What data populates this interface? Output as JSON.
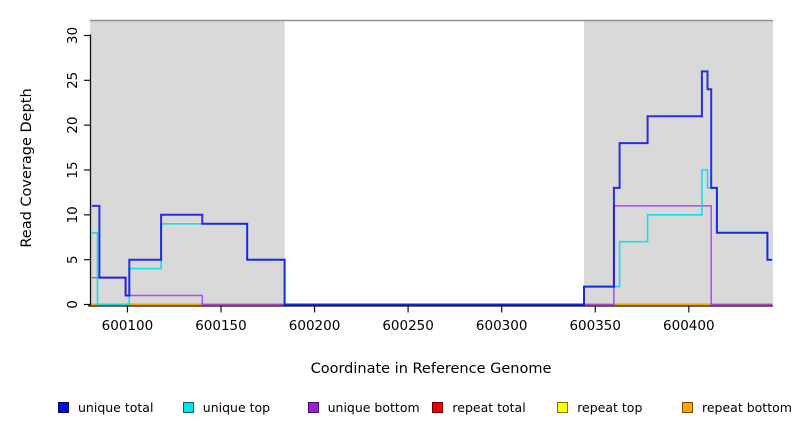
{
  "chart_data": {
    "type": "line",
    "step_mode": "after",
    "title": "",
    "xlabel": "Coordinate in Reference Genome",
    "ylabel": "Read Coverage Depth",
    "x_domain": [
      600080,
      600445
    ],
    "y_domain": [
      0,
      31.8
    ],
    "x_ticks": [
      600100,
      600150,
      600200,
      600250,
      600300,
      600350,
      600400
    ],
    "y_ticks": [
      0,
      5,
      10,
      15,
      20,
      25,
      30
    ],
    "grid": false,
    "legend_position": "bottom",
    "shaded_regions": [
      {
        "from": 600080,
        "to": 600184
      },
      {
        "from": 600344,
        "to": 600445
      }
    ],
    "colors": {
      "shade": "#d9d9d9",
      "top_border": "#8f8f8f",
      "axis": "#111111"
    },
    "data_end_x": 600444.5,
    "series": [
      {
        "name": "repeat top",
        "color": "#ffee00",
        "width": 1.5,
        "opacity": 1.0,
        "points": [
          [
            600081,
            0
          ]
        ]
      },
      {
        "name": "repeat total",
        "color": "#ee1122",
        "width": 1.5,
        "opacity": 0.9,
        "points": [
          [
            600081,
            0
          ]
        ]
      },
      {
        "name": "repeat bottom",
        "color": "#ffa200",
        "width": 1.6,
        "opacity": 1.0,
        "points": [
          [
            600081,
            0
          ]
        ]
      },
      {
        "name": "unique bottom",
        "color": "#a335ea",
        "width": 1.5,
        "opacity": 0.85,
        "points": [
          [
            600081,
            3
          ],
          [
            600099,
            1
          ],
          [
            600140,
            0
          ],
          [
            600360,
            11
          ],
          [
            600412,
            0
          ]
        ]
      },
      {
        "name": "unique top",
        "color": "#00dde8",
        "width": 1.6,
        "opacity": 0.9,
        "points": [
          [
            600081,
            8
          ],
          [
            600084,
            0
          ],
          [
            600101,
            4
          ],
          [
            600118,
            9
          ],
          [
            600164,
            5
          ],
          [
            600184,
            0
          ],
          [
            600344,
            2
          ],
          [
            600363,
            7
          ],
          [
            600378,
            10
          ],
          [
            600407,
            15
          ],
          [
            600410,
            13
          ],
          [
            600415,
            8
          ],
          [
            600442,
            5
          ]
        ]
      },
      {
        "name": "unique total",
        "color": "#0d0de0",
        "width": 2.0,
        "opacity": 0.85,
        "points": [
          [
            600081,
            11
          ],
          [
            600085,
            3
          ],
          [
            600099,
            1
          ],
          [
            600101,
            5
          ],
          [
            600118,
            10
          ],
          [
            600140,
            9
          ],
          [
            600164,
            5
          ],
          [
            600184,
            0
          ],
          [
            600344,
            2
          ],
          [
            600360,
            13
          ],
          [
            600363,
            18
          ],
          [
            600378,
            21
          ],
          [
            600407,
            26
          ],
          [
            600410,
            24
          ],
          [
            600412,
            13
          ],
          [
            600415,
            8
          ],
          [
            600442,
            5
          ]
        ]
      }
    ],
    "legend": [
      {
        "label": "unique total",
        "color": "#0b0bdf"
      },
      {
        "label": "unique top",
        "color": "#00e5ee"
      },
      {
        "label": "unique bottom",
        "color": "#9c1fd4"
      },
      {
        "label": "repeat total",
        "color": "#ee0000"
      },
      {
        "label": "repeat top",
        "color": "#ffff00"
      },
      {
        "label": "repeat bottom",
        "color": "#ffa500"
      }
    ]
  }
}
